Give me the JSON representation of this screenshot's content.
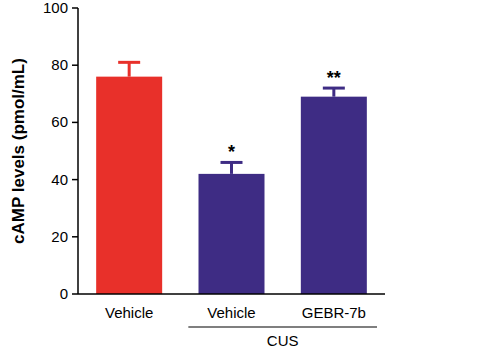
{
  "chart_data": {
    "type": "bar",
    "y_label": "cAMP levels (pmol/mL)",
    "categories": [
      "Vehicle",
      "Vehicle",
      "GEBR-7b"
    ],
    "category_groups": [
      null,
      "CUS",
      "CUS"
    ],
    "values": [
      76,
      42,
      69
    ],
    "errors": [
      5,
      4,
      3
    ],
    "annotations": [
      null,
      "*",
      "**"
    ],
    "colors": [
      "#e8302a",
      "#3e2c84",
      "#3e2c84"
    ],
    "ylim": [
      0,
      100
    ],
    "yticks": [
      0,
      20,
      40,
      60,
      80,
      100
    ],
    "grid": false
  }
}
